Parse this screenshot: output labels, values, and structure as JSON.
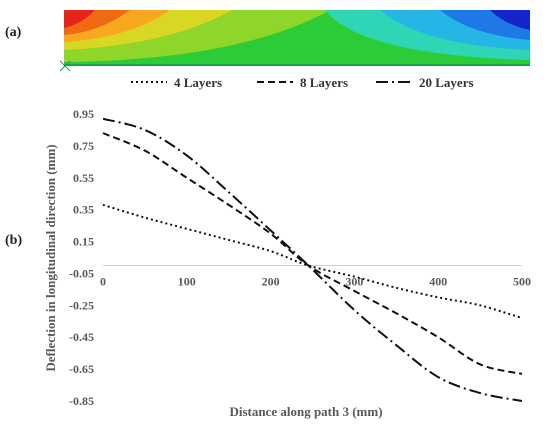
{
  "panels": {
    "a": "(a)",
    "b": "(b)"
  },
  "contour_colors": [
    "#e8231a",
    "#f06a14",
    "#f7a81e",
    "#d8d824",
    "#8fd62a",
    "#2ccc38",
    "#2ed6b6",
    "#26b6e6",
    "#1e78e6",
    "#1426c8"
  ],
  "chart_data": {
    "type": "line",
    "title": "",
    "xlabel": "Distance along path 3 (mm)",
    "ylabel": "Deflection in longitudinal direction (mm)",
    "xlim": [
      0,
      500
    ],
    "ylim": [
      -0.85,
      0.95
    ],
    "x_ticks": [
      0,
      100,
      200,
      300,
      400,
      500
    ],
    "x_tick_labels": [
      "0",
      "100",
      "200",
      "300",
      "400",
      "500"
    ],
    "y_ticks": [
      0.95,
      0.75,
      0.55,
      0.35,
      0.15,
      -0.05,
      -0.25,
      -0.45,
      -0.65,
      -0.85
    ],
    "y_tick_labels": [
      "0.95",
      "0.75",
      "0.55",
      "0.35",
      "0.15",
      "-0.05",
      "-0.25",
      "-0.45",
      "-0.65",
      "-0.85"
    ],
    "grid": false,
    "legend_position": "top",
    "x": [
      0,
      50,
      100,
      150,
      200,
      245,
      300,
      350,
      400,
      450,
      500
    ],
    "series": [
      {
        "name": "4 Layers",
        "dash": "dotted",
        "values": [
          0.38,
          0.3,
          0.23,
          0.16,
          0.09,
          0.0,
          -0.07,
          -0.14,
          -0.2,
          -0.25,
          -0.33
        ]
      },
      {
        "name": "8 Layers",
        "dash": "dashed",
        "values": [
          0.83,
          0.72,
          0.55,
          0.38,
          0.2,
          0.0,
          -0.16,
          -0.3,
          -0.45,
          -0.62,
          -0.68
        ]
      },
      {
        "name": "20 Layers",
        "dash": "dashdot",
        "values": [
          0.92,
          0.85,
          0.69,
          0.46,
          0.22,
          0.0,
          -0.28,
          -0.5,
          -0.7,
          -0.8,
          -0.85
        ]
      }
    ]
  }
}
